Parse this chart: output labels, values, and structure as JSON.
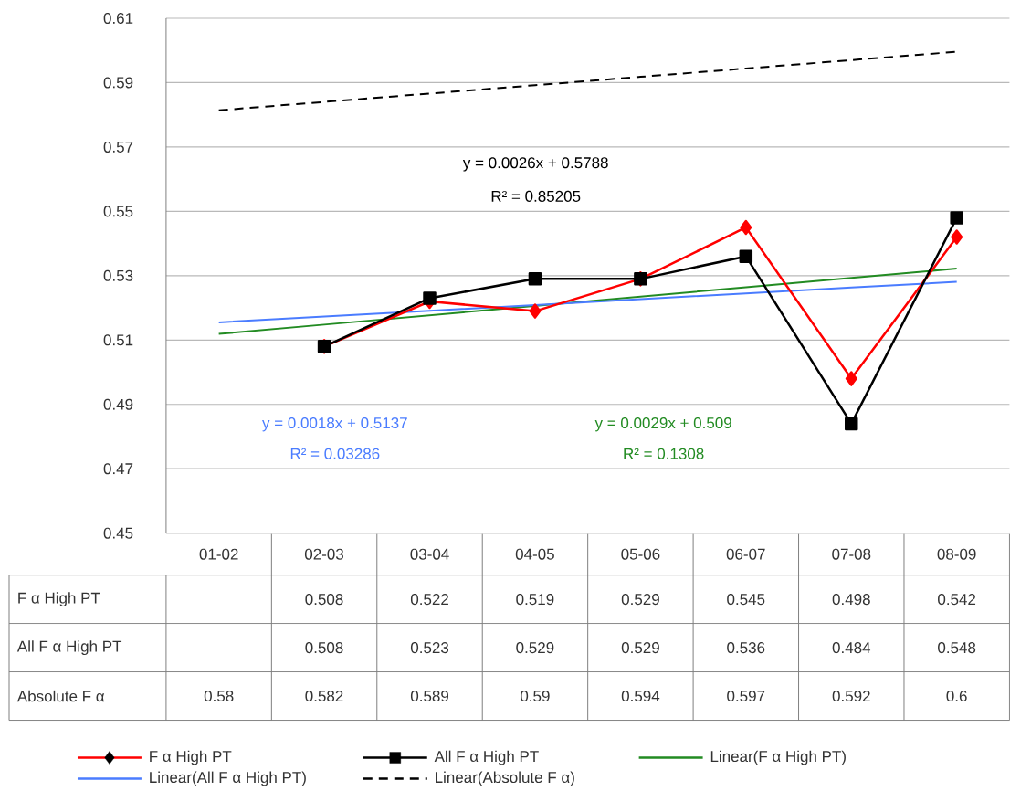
{
  "chart_data": [
    {
      "type": "line",
      "categories": [
        null,
        null,
        null,
        null,
        null,
        null,
        null,
        null
      ],
      "series": [
        {
          "name": "F α High PT",
          "color": "#ff0000",
          "marker": "diamond",
          "line_style": "solid",
          "values": [
            null,
            0.508,
            0.522,
            0.519,
            0.529,
            0.545,
            0.498,
            0.542
          ]
        },
        {
          "name": "All F α High PT",
          "color": "#000000",
          "marker": "square",
          "line_style": "solid",
          "values": [
            null,
            0.508,
            0.523,
            0.529,
            0.529,
            0.536,
            0.484,
            0.548
          ]
        },
        {
          "name": "Linear(F α High PT)",
          "color": "#228b22",
          "line_style": "solid",
          "values": [
            0.5119,
            0.5148,
            0.5177,
            0.5206,
            0.5235,
            0.5264,
            0.5293,
            0.5322
          ]
        },
        {
          "name": "Linear(All F α High PT)",
          "color": "#4a7cff",
          "line_style": "solid",
          "values": [
            0.5155,
            0.5173,
            0.5191,
            0.5209,
            0.5227,
            0.5245,
            0.5263,
            0.5281
          ]
        },
        {
          "name": "Linear(Absolute F α)",
          "color": "#000000",
          "line_style": "dashed",
          "values": [
            0.5814,
            0.584,
            0.5866,
            0.5892,
            0.5918,
            0.5944,
            0.597,
            0.5996
          ]
        }
      ],
      "ylim": [
        0.45,
        0.61
      ],
      "yticks": [
        0.45,
        0.47,
        0.49,
        0.51,
        0.53,
        0.55,
        0.57,
        0.59,
        0.61
      ],
      "grid": "y",
      "legend": "bottom",
      "annotations": [
        "y = 0.0026x + 0.5788",
        "R² = 0.85205",
        "y = 0.0018x + 0.5137",
        "R² = 0.03286",
        "y = 0.0029x + 0.509",
        "R² = 0.1308"
      ]
    },
    {
      "type": "other",
      "data_labels": true,
      "categories": [
        "01-02",
        "02-03",
        "03-04",
        "04-05",
        "05-06",
        "06-07",
        "07-08",
        "08-09"
      ],
      "series": [
        {
          "name": "F α High PT",
          "values": [
            null,
            0.508,
            0.522,
            0.519,
            0.529,
            0.545,
            0.498,
            0.542
          ]
        },
        {
          "name": "All F α High PT",
          "values": [
            null,
            0.508,
            0.523,
            0.529,
            0.529,
            0.536,
            0.484,
            0.548
          ]
        },
        {
          "name": "Absolute F α",
          "values": [
            0.58,
            0.582,
            0.589,
            0.59,
            0.594,
            0.597,
            0.592,
            0.6
          ]
        }
      ]
    }
  ]
}
